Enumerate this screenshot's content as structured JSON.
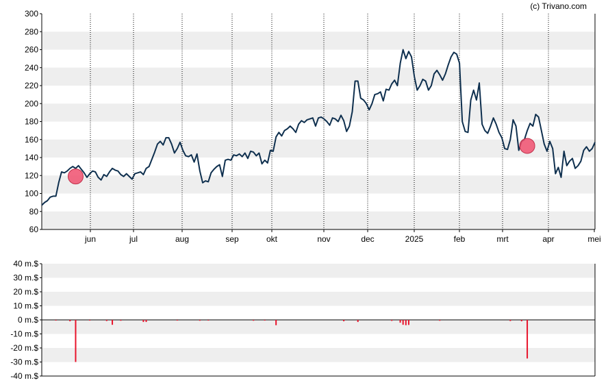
{
  "copyright": "(c) Trivano.com",
  "colors": {
    "band": "#eeeeee",
    "price_line": "#0e2f4e",
    "marker": "#f0506e",
    "volume_bar": "#e8132b",
    "axis": "#000000",
    "grid_dotted": "#000000"
  },
  "chart_data": [
    {
      "type": "line",
      "title": "",
      "ylim": [
        60,
        300
      ],
      "yticks": [
        60,
        80,
        100,
        120,
        140,
        160,
        180,
        200,
        220,
        240,
        260,
        280,
        300
      ],
      "xticks": [
        "jun",
        "jul",
        "aug",
        "sep",
        "okt",
        "nov",
        "dec",
        "2025",
        "feb",
        "mrt",
        "apr",
        "mei"
      ],
      "banded_background": true,
      "vertical_dotted_gridlines": true,
      "series": [
        {
          "values": [
            87,
            90,
            92,
            96,
            97,
            97,
            112,
            124,
            123,
            125,
            128,
            130,
            128,
            131,
            127,
            123,
            118,
            122,
            125,
            124,
            118,
            115,
            121,
            119,
            124,
            128,
            126,
            125,
            121,
            119,
            122,
            119,
            116,
            122,
            123,
            124,
            121,
            128,
            130,
            138,
            146,
            155,
            158,
            154,
            162,
            162,
            155,
            145,
            150,
            157,
            148,
            142,
            141,
            143,
            135,
            144,
            125,
            112,
            114,
            113,
            123,
            127,
            130,
            132,
            119,
            137,
            138,
            137,
            143,
            142,
            144,
            141,
            145,
            139,
            147,
            146,
            142,
            145,
            133,
            137,
            134,
            148,
            147,
            163,
            168,
            164,
            170,
            172,
            175,
            172,
            168,
            177,
            181,
            179,
            182,
            183,
            184,
            175,
            184,
            185,
            183,
            180,
            176,
            184,
            183,
            180,
            187,
            181,
            169,
            175,
            191,
            225,
            225,
            206,
            204,
            200,
            193,
            200,
            210,
            211,
            213,
            203,
            216,
            215,
            222,
            226,
            220,
            245,
            260,
            250,
            258,
            252,
            230,
            215,
            220,
            227,
            225,
            215,
            220,
            233,
            237,
            232,
            226,
            233,
            243,
            252,
            257,
            255,
            245,
            180,
            169,
            168,
            204,
            215,
            204,
            223,
            177,
            170,
            167,
            175,
            184,
            177,
            168,
            162,
            150,
            149,
            160,
            182,
            175,
            148,
            158,
            160,
            170,
            178,
            175,
            188,
            185,
            170,
            155,
            147,
            158,
            150,
            122,
            129,
            118,
            147,
            131,
            136,
            139,
            128,
            131,
            136,
            148,
            152,
            147,
            150,
            157
          ],
          "markers": [
            {
              "x_index": 12,
              "y": 119
            },
            {
              "x_index": 172,
              "y": 153
            }
          ]
        }
      ]
    },
    {
      "type": "bar",
      "title": "",
      "ylim": [
        -40,
        40
      ],
      "yticks": [
        "40 m.$",
        "30 m.$",
        "20 m.$",
        "10 m.$",
        "0 m.$",
        "-10 m.$",
        "-20 m.$",
        "-30 m.$",
        "-40 m.$"
      ],
      "ytick_values": [
        40,
        30,
        20,
        10,
        0,
        -10,
        -20,
        -30,
        -40
      ],
      "unit": "m.$",
      "values": [
        {
          "x_index": 5,
          "v": -0.5
        },
        {
          "x_index": 10,
          "v": -1.0
        },
        {
          "x_index": 12,
          "v": -30.0
        },
        {
          "x_index": 17,
          "v": -0.5
        },
        {
          "x_index": 23,
          "v": -0.8
        },
        {
          "x_index": 25,
          "v": -3.5
        },
        {
          "x_index": 28,
          "v": -0.6
        },
        {
          "x_index": 36,
          "v": -1.5
        },
        {
          "x_index": 37,
          "v": -1.5
        },
        {
          "x_index": 48,
          "v": -0.5
        },
        {
          "x_index": 56,
          "v": -0.6
        },
        {
          "x_index": 59,
          "v": -0.5
        },
        {
          "x_index": 75,
          "v": -0.6
        },
        {
          "x_index": 79,
          "v": -0.5
        },
        {
          "x_index": 83,
          "v": -3.8
        },
        {
          "x_index": 107,
          "v": -1.0
        },
        {
          "x_index": 112,
          "v": -1.5
        },
        {
          "x_index": 124,
          "v": -0.7
        },
        {
          "x_index": 127,
          "v": -2.0
        },
        {
          "x_index": 128,
          "v": -3.5
        },
        {
          "x_index": 129,
          "v": -3.8
        },
        {
          "x_index": 130,
          "v": -3.6
        },
        {
          "x_index": 141,
          "v": -0.6
        },
        {
          "x_index": 166,
          "v": -0.8
        },
        {
          "x_index": 170,
          "v": -1.0
        },
        {
          "x_index": 172,
          "v": -27.5
        }
      ]
    }
  ]
}
